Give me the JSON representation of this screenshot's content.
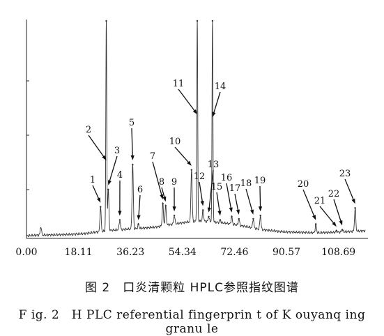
{
  "chart_data": {
    "type": "line",
    "title": "",
    "xlabel": "",
    "ylabel": "",
    "x_ticks": [
      "0.00",
      "18.11",
      "36.23",
      "54.34",
      "72.46",
      "90.57",
      "108.69"
    ],
    "xlim": [
      0,
      118
    ],
    "ylim": [
      0,
      100
    ],
    "grid": false,
    "baseline": [
      [
        0,
        1.2
      ],
      [
        4,
        1.5
      ],
      [
        8,
        1.6
      ],
      [
        15,
        1.8
      ],
      [
        20,
        2.2
      ],
      [
        25,
        3.0
      ],
      [
        30,
        3.8
      ],
      [
        38,
        4.5
      ],
      [
        45,
        5.2
      ],
      [
        50,
        6.4
      ],
      [
        56,
        7.5
      ],
      [
        60,
        8.0
      ],
      [
        65,
        7.6
      ],
      [
        70,
        6.9
      ],
      [
        76,
        5.6
      ],
      [
        82,
        4.0
      ],
      [
        90,
        3.0
      ],
      [
        100,
        2.6
      ],
      [
        108,
        2.8
      ],
      [
        114,
        3.3
      ],
      [
        118,
        3.5
      ]
    ],
    "solvent_peak": {
      "x": 5.0,
      "y": 5.5
    },
    "peaks": [
      {
        "label": "1",
        "x": 25.8,
        "y": 14.5
      },
      {
        "label": "2",
        "x": 27.8,
        "y": 100
      },
      {
        "label": "3",
        "x": 28.5,
        "y": 22.5
      },
      {
        "label": "4",
        "x": 32.5,
        "y": 8.5
      },
      {
        "label": "5",
        "x": 37.0,
        "y": 34.0
      },
      {
        "label": "6",
        "x": 39.0,
        "y": 6.5
      },
      {
        "label": "7",
        "x": 47.5,
        "y": 16.0
      },
      {
        "label": "8",
        "x": 48.5,
        "y": 15.0
      },
      {
        "label": "9",
        "x": 51.5,
        "y": 10.5
      },
      {
        "label": "10",
        "x": 57.5,
        "y": 31.5
      },
      {
        "label": "11",
        "x": 59.5,
        "y": 100
      },
      {
        "label": "12",
        "x": 61.5,
        "y": 13.0
      },
      {
        "label": "13",
        "x": 63.5,
        "y": 10.0
      },
      {
        "label": "14",
        "x": 64.8,
        "y": 100
      },
      {
        "label": "15",
        "x": 67.5,
        "y": 8.5
      },
      {
        "label": "16",
        "x": 71.5,
        "y": 10.0
      },
      {
        "label": "17",
        "x": 74.0,
        "y": 9.0
      },
      {
        "label": "18",
        "x": 79.0,
        "y": 9.0
      },
      {
        "label": "19",
        "x": 81.5,
        "y": 10.5
      },
      {
        "label": "20",
        "x": 100.8,
        "y": 6.5
      },
      {
        "label": "21",
        "x": 108.0,
        "y": 3.5
      },
      {
        "label": "22",
        "x": 110.0,
        "y": 4.0
      },
      {
        "label": "23",
        "x": 114.5,
        "y": 14.0
      }
    ]
  },
  "caption": {
    "figure_cn": "图 2　口炎清颗粒 HPLC参照指纹图谱",
    "figure_en": "F ig. 2　H PLC  referential  fingerprin t of K ouyanq ing  granu le"
  }
}
